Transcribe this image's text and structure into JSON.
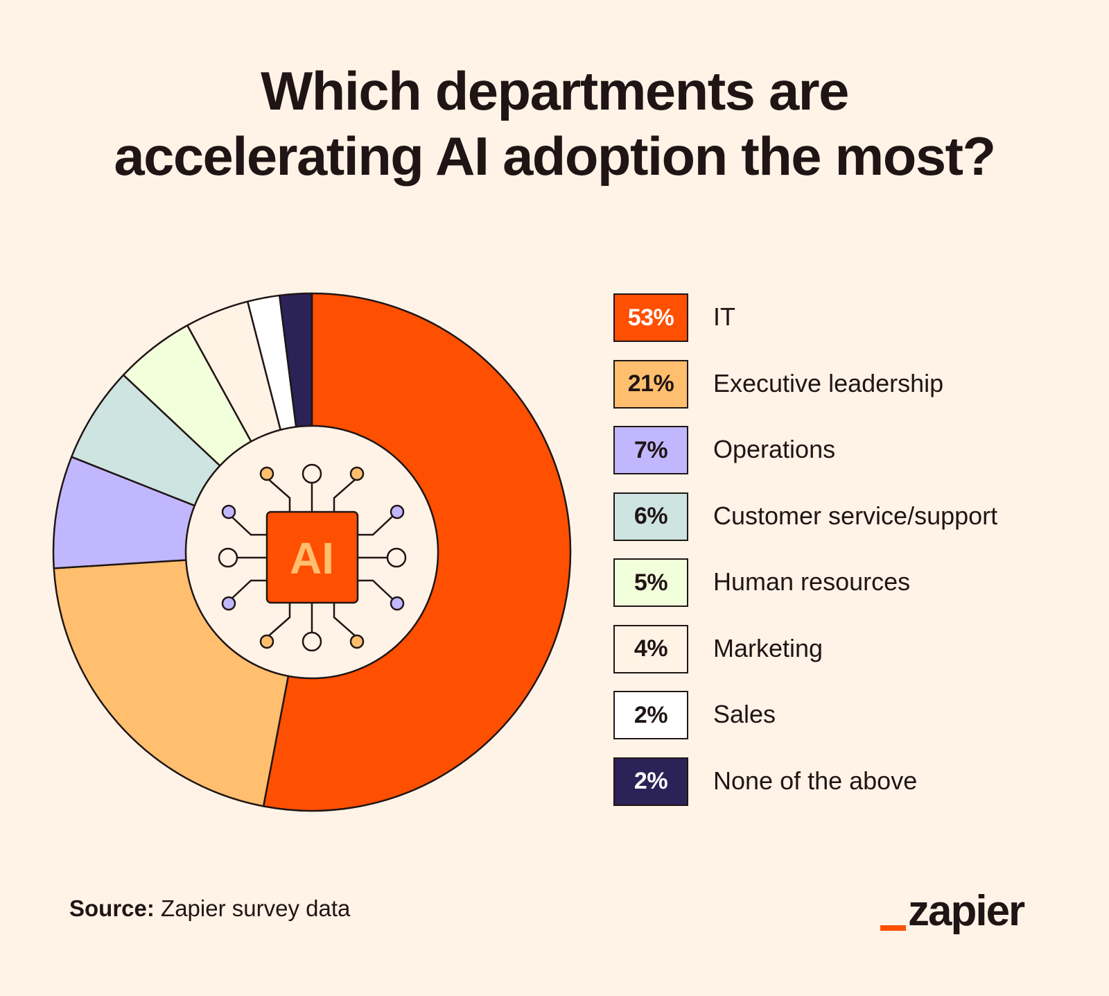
{
  "title_lines": [
    "Which departments are",
    "accelerating AI adoption the most?"
  ],
  "chart_data": {
    "type": "pie",
    "subtype": "donut",
    "title": "Which departments are accelerating AI adoption the most?",
    "start": "top",
    "direction": "clockwise",
    "unit": "%",
    "categories": [
      "IT",
      "Executive leadership",
      "Operations",
      "Customer service/support",
      "Human resources",
      "Marketing",
      "Sales",
      "None of the above"
    ],
    "values": [
      53,
      21,
      7,
      6,
      5,
      4,
      2,
      2
    ],
    "labels": [
      "53%",
      "21%",
      "7%",
      "6%",
      "5%",
      "4%",
      "2%",
      "2%"
    ],
    "colors": [
      "#ff4f00",
      "#ffbf6e",
      "#c1b7ff",
      "#cde4e1",
      "#f2ffdb",
      "#fff3e6",
      "#ffffff",
      "#2b2358"
    ],
    "label_colors": [
      "#ffffff",
      "#201515",
      "#201515",
      "#201515",
      "#201515",
      "#201515",
      "#201515",
      "#ffffff"
    ],
    "legend_position": "right",
    "center_icon": "ai-chip-icon",
    "center_label": "AI"
  },
  "colors": {
    "background": "#fef3e6",
    "ink": "#201515",
    "brand": "#ff4f00",
    "center_chip": "#ff4f00",
    "center_chip_text": "#ffbf6e"
  },
  "footer": {
    "source_label": "Source:",
    "source_text": " Zapier survey data"
  },
  "logo": {
    "text": "zapier"
  }
}
